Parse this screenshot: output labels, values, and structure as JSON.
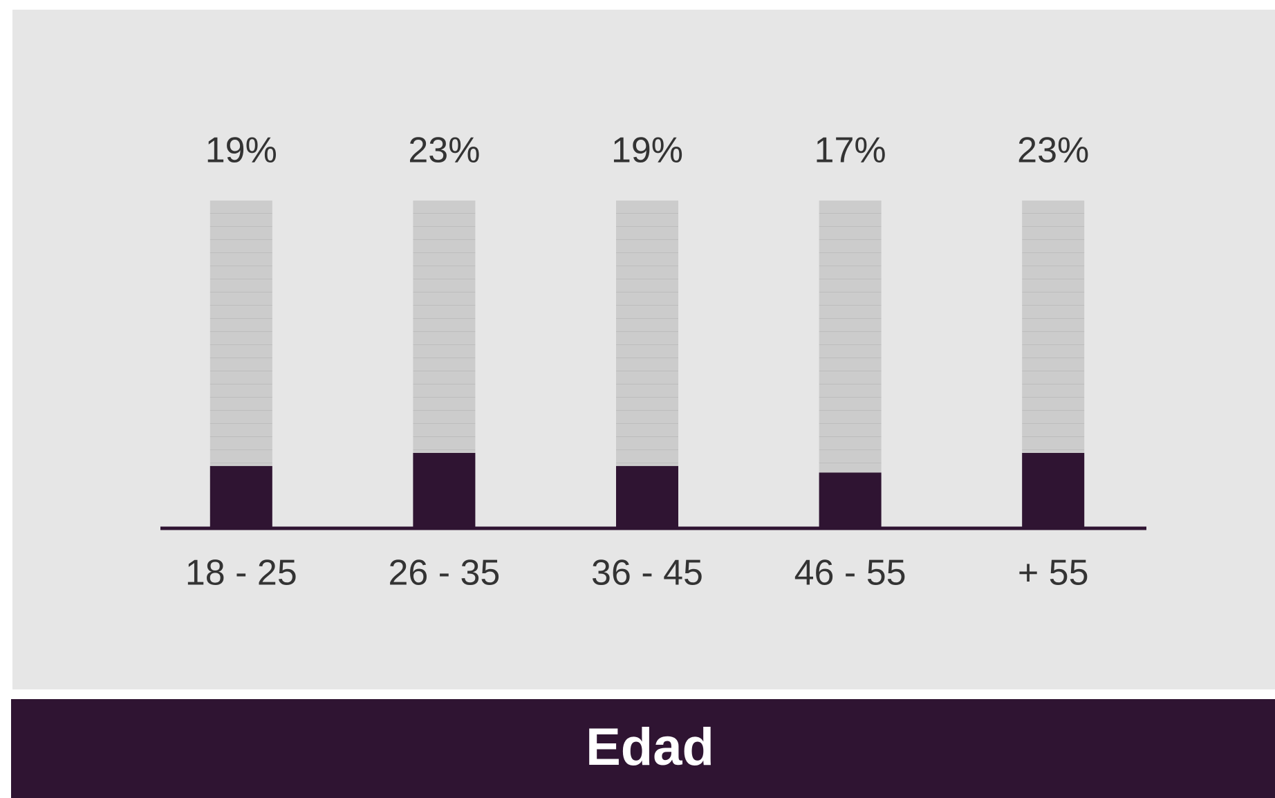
{
  "chart_data": {
    "type": "bar",
    "title": "Edad",
    "categories": [
      "18 - 25",
      "26 - 35",
      "36 - 45",
      "46 - 55",
      "+ 55"
    ],
    "values": [
      19,
      23,
      19,
      17,
      23
    ],
    "value_labels": [
      "19%",
      "23%",
      "19%",
      "17%",
      "23%"
    ],
    "color": "#2f1432",
    "ylim": [
      0,
      100
    ]
  }
}
